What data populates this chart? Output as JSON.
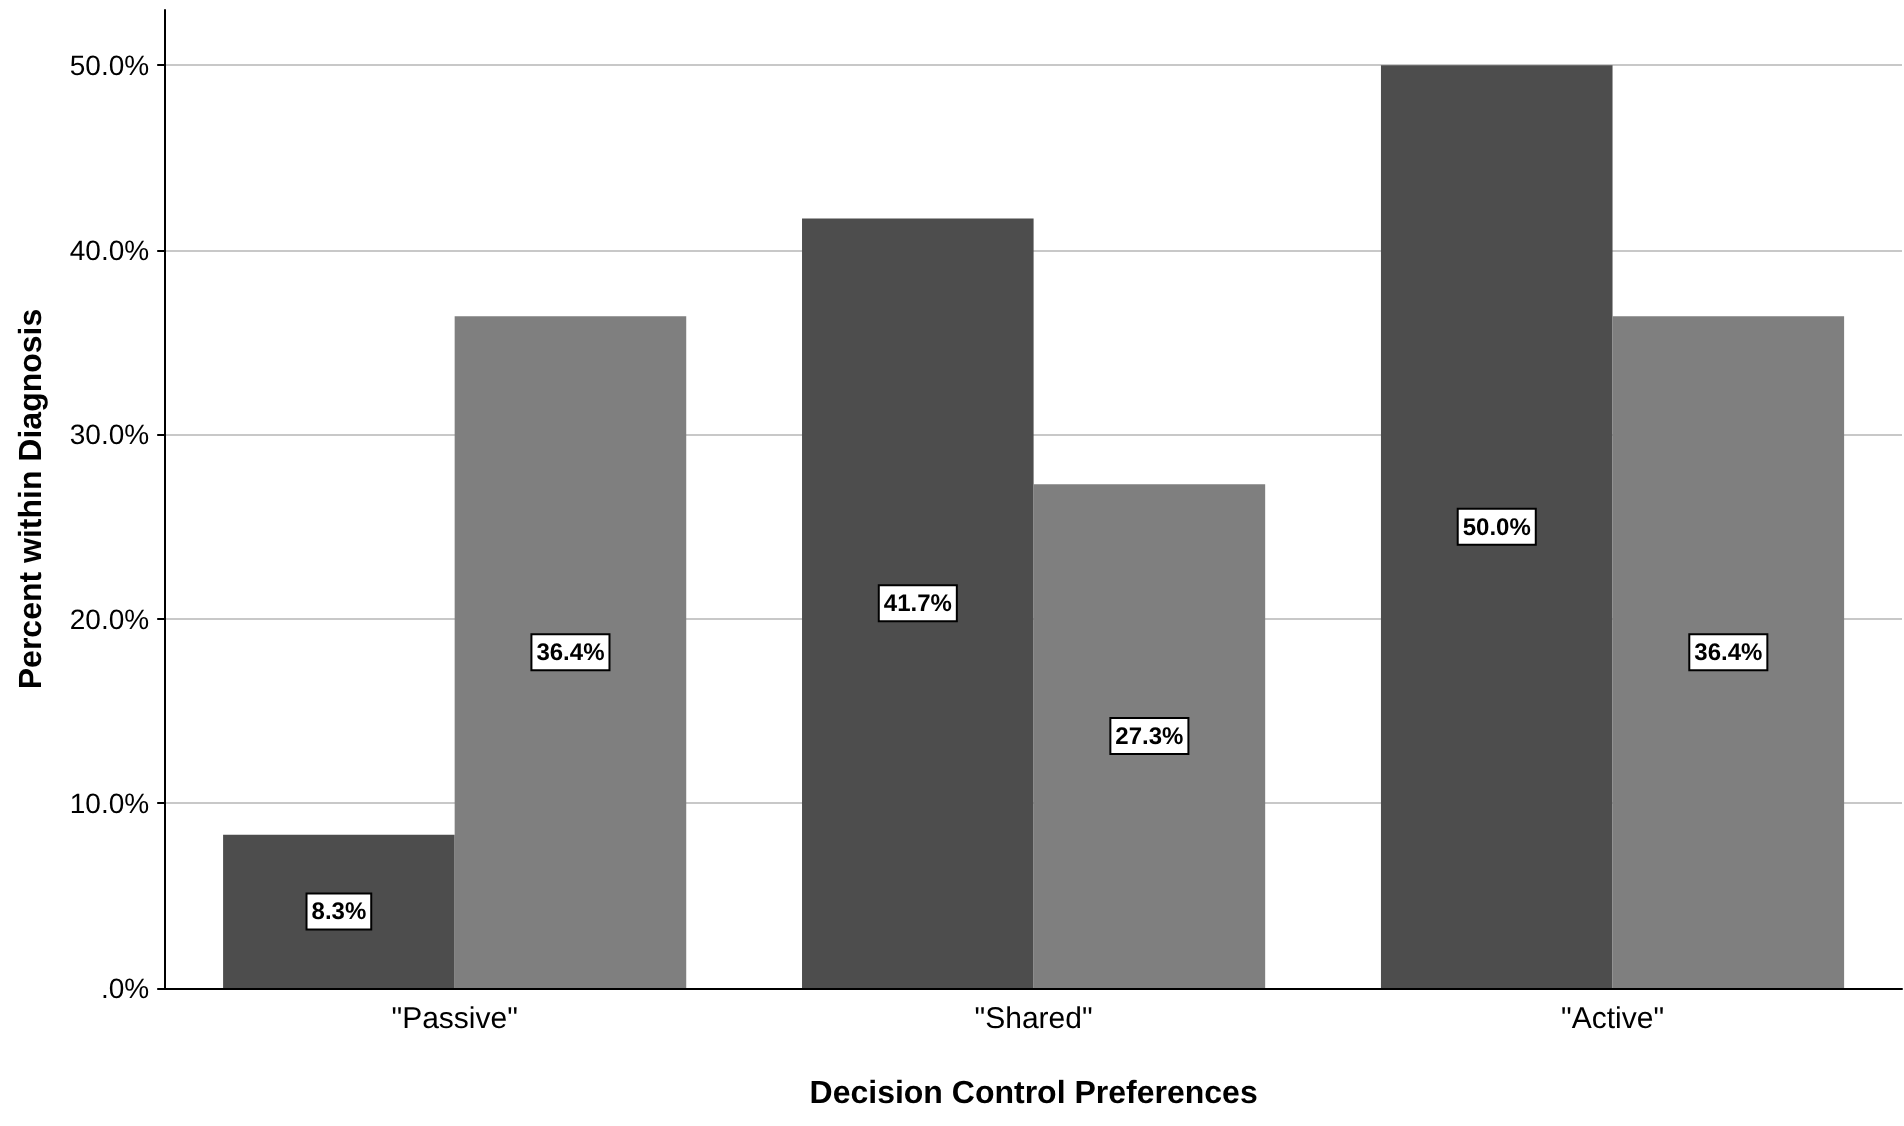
{
  "chart_data": {
    "type": "bar",
    "xlabel": "Decision Control Preferences",
    "ylabel": "Percent within Diagnosis",
    "categories": [
      "\"Passive\"",
      "\"Shared\"",
      "\"Active\""
    ],
    "series": [
      {
        "color": "#4d4d4d",
        "values": [
          8.3,
          41.7,
          50.0
        ],
        "value_labels": [
          "8.3%",
          "41.7%",
          "50.0%"
        ]
      },
      {
        "color": "#7f7f7f",
        "values": [
          36.4,
          27.3,
          36.4
        ],
        "value_labels": [
          "36.4%",
          "27.3%",
          "36.4%"
        ]
      }
    ],
    "ylim": [
      0,
      53
    ],
    "yticks": [
      {
        "value": 0,
        "label": ".0%"
      },
      {
        "value": 10,
        "label": "10.0%"
      },
      {
        "value": 20,
        "label": "20.0%"
      },
      {
        "value": 30,
        "label": "30.0%"
      },
      {
        "value": 40,
        "label": "40.0%"
      },
      {
        "value": 50,
        "label": "50.0%"
      }
    ],
    "grid": "y"
  }
}
